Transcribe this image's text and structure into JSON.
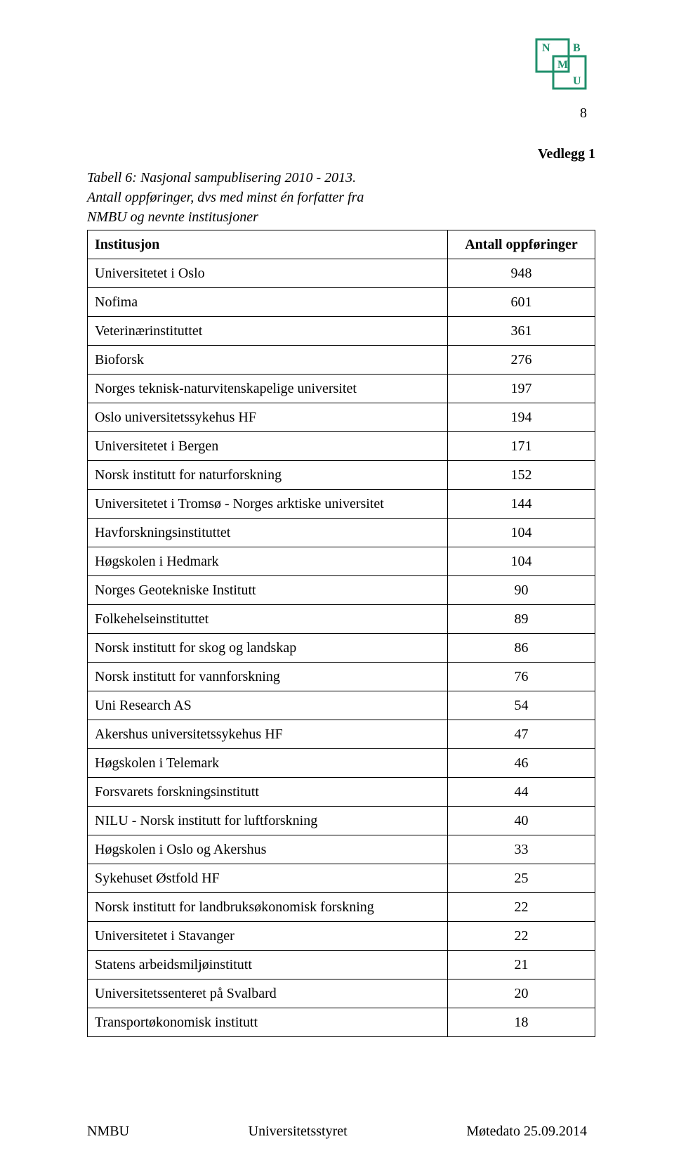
{
  "page_number": "8",
  "attachment_label": "Vedlegg 1",
  "caption_line1": "Tabell 6: Nasjonal sampublisering 2010 - 2013.",
  "caption_line2": "Antall oppføringer, dvs med minst én forfatter fra",
  "caption_line3": "NMBU og nevnte institusjoner",
  "table": {
    "header_institution": "Institusjon",
    "header_count": "Antall oppføringer",
    "rows": [
      {
        "name": "Universitetet i Oslo",
        "value": "948"
      },
      {
        "name": "Nofima",
        "value": "601"
      },
      {
        "name": "Veterinærinstituttet",
        "value": "361"
      },
      {
        "name": "Bioforsk",
        "value": "276"
      },
      {
        "name": "Norges teknisk-naturvitenskapelige universitet",
        "value": "197"
      },
      {
        "name": "Oslo universitetssykehus HF",
        "value": "194"
      },
      {
        "name": "Universitetet i Bergen",
        "value": "171"
      },
      {
        "name": "Norsk institutt for naturforskning",
        "value": "152"
      },
      {
        "name": "Universitetet i Tromsø - Norges arktiske universitet",
        "value": "144"
      },
      {
        "name": "Havforskningsinstituttet",
        "value": "104"
      },
      {
        "name": "Høgskolen i Hedmark",
        "value": "104"
      },
      {
        "name": "Norges Geotekniske Institutt",
        "value": "90"
      },
      {
        "name": "Folkehelseinstituttet",
        "value": "89"
      },
      {
        "name": "Norsk institutt for skog og landskap",
        "value": "86"
      },
      {
        "name": "Norsk institutt for vannforskning",
        "value": "76"
      },
      {
        "name": "Uni Research AS",
        "value": "54"
      },
      {
        "name": "Akershus universitetssykehus HF",
        "value": "47"
      },
      {
        "name": "Høgskolen i Telemark",
        "value": "46"
      },
      {
        "name": "Forsvarets forskningsinstitutt",
        "value": "44"
      },
      {
        "name": "NILU - Norsk institutt for luftforskning",
        "value": "40"
      },
      {
        "name": "Høgskolen i Oslo og Akershus",
        "value": "33"
      },
      {
        "name": "Sykehuset Østfold HF",
        "value": "25"
      },
      {
        "name": "Norsk institutt for landbruksøkonomisk forskning",
        "value": "22"
      },
      {
        "name": "Universitetet i Stavanger",
        "value": "22"
      },
      {
        "name": "Statens arbeidsmiljøinstitutt",
        "value": "21"
      },
      {
        "name": "Universitetssenteret på Svalbard",
        "value": "20"
      },
      {
        "name": "Transportøkonomisk institutt",
        "value": "18"
      }
    ]
  },
  "footer": {
    "left": "NMBU",
    "center": "Universitetsstyret",
    "right": "Møtedato 25.09.2014"
  },
  "logo": {
    "stroke": "#1f8f6b",
    "letters": {
      "n": "N",
      "m": "M",
      "b": "B",
      "u": "U"
    }
  }
}
